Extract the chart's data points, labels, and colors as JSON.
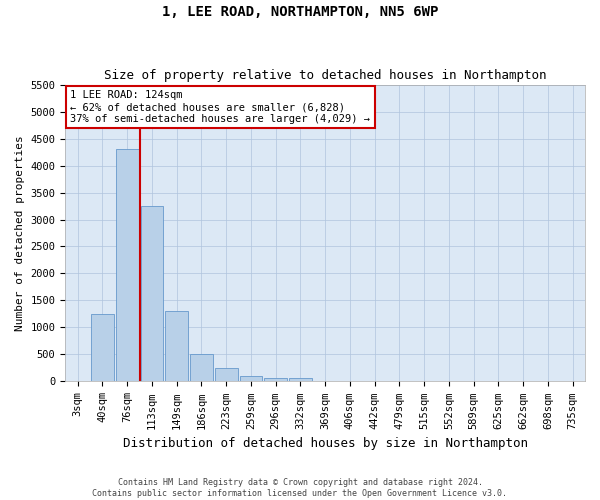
{
  "title": "1, LEE ROAD, NORTHAMPTON, NN5 6WP",
  "subtitle": "Size of property relative to detached houses in Northampton",
  "xlabel": "Distribution of detached houses by size in Northampton",
  "ylabel": "Number of detached properties",
  "categories": [
    "3sqm",
    "40sqm",
    "76sqm",
    "113sqm",
    "149sqm",
    "186sqm",
    "223sqm",
    "259sqm",
    "296sqm",
    "332sqm",
    "369sqm",
    "406sqm",
    "442sqm",
    "479sqm",
    "515sqm",
    "552sqm",
    "589sqm",
    "625sqm",
    "662sqm",
    "698sqm",
    "735sqm"
  ],
  "values": [
    0,
    1250,
    4300,
    3250,
    1300,
    500,
    250,
    100,
    70,
    60,
    0,
    0,
    0,
    0,
    0,
    0,
    0,
    0,
    0,
    0,
    0
  ],
  "bar_color": "#b8d0e8",
  "bar_edge_color": "#6699cc",
  "highlight_line_index": 3,
  "highlight_line_color": "#cc0000",
  "ylim_max": 5500,
  "yticks": [
    0,
    500,
    1000,
    1500,
    2000,
    2500,
    3000,
    3500,
    4000,
    4500,
    5000,
    5500
  ],
  "annotation_text": "1 LEE ROAD: 124sqm\n← 62% of detached houses are smaller (6,828)\n37% of semi-detached houses are larger (4,029) →",
  "annotation_box_facecolor": "#ffffff",
  "annotation_box_edgecolor": "#cc0000",
  "footer_line1": "Contains HM Land Registry data © Crown copyright and database right 2024.",
  "footer_line2": "Contains public sector information licensed under the Open Government Licence v3.0.",
  "bg_color": "#ffffff",
  "plot_bg_color": "#dce8f5",
  "grid_color": "#b0c4de",
  "title_fontsize": 10,
  "subtitle_fontsize": 9,
  "xlabel_fontsize": 9,
  "ylabel_fontsize": 8,
  "tick_fontsize": 7.5,
  "annotation_fontsize": 7.5,
  "footer_fontsize": 6
}
